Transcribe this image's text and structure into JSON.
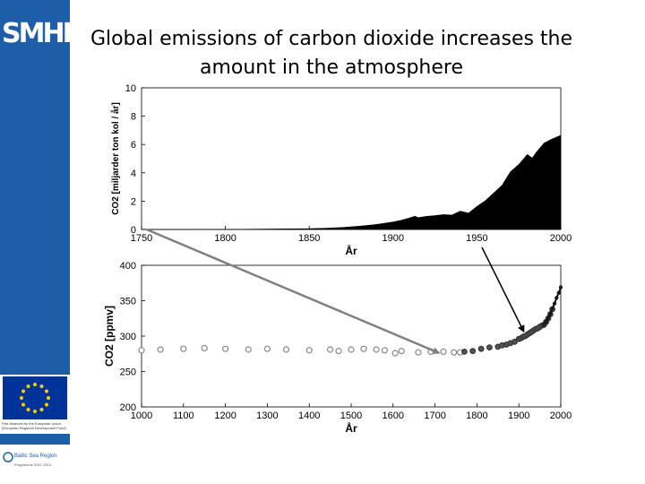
{
  "title": {
    "line1": "Global emissions of carbon dioxide increases the",
    "line2": "amount in the atmosphere"
  },
  "logo": {
    "text": "SMHI"
  },
  "footer": {
    "eu_caption": "Part-financed by the European Union (European Regional Development Fund)",
    "bsr_name": "Baltic Sea Region",
    "bsr_sub": "Programme 2007-2013"
  },
  "colors": {
    "sidebar": "#1e5ea8",
    "arrow": "#808080",
    "fill": "#000000"
  },
  "chart_data": [
    {
      "type": "area",
      "ylabel": "CO2 [miljarder ton kol / år]",
      "xlabel": "År",
      "xlim": [
        1750,
        2000
      ],
      "ylim": [
        0,
        10
      ],
      "xticks": [
        1750,
        1800,
        1850,
        1900,
        1950,
        2000
      ],
      "yticks": [
        0,
        2,
        4,
        6,
        8,
        10
      ],
      "x": [
        1750,
        1800,
        1850,
        1860,
        1870,
        1880,
        1890,
        1900,
        1905,
        1910,
        1913,
        1915,
        1920,
        1925,
        1930,
        1935,
        1940,
        1945,
        1950,
        1955,
        1960,
        1965,
        1970,
        1975,
        1980,
        1983,
        1985,
        1990,
        1995,
        2000
      ],
      "values": [
        0.003,
        0.008,
        0.054,
        0.091,
        0.147,
        0.236,
        0.356,
        0.534,
        0.66,
        0.82,
        0.94,
        0.84,
        0.93,
        0.98,
        1.05,
        1.02,
        1.3,
        1.16,
        1.63,
        2.04,
        2.58,
        3.13,
        4.08,
        4.6,
        5.3,
        5.05,
        5.4,
        6.1,
        6.4,
        6.65
      ]
    },
    {
      "type": "scatter",
      "ylabel": "CO2 [ppmv]",
      "xlabel": "År",
      "xlim": [
        1000,
        2000
      ],
      "ylim": [
        200,
        400
      ],
      "xticks": [
        1000,
        1100,
        1200,
        1300,
        1400,
        1500,
        1600,
        1700,
        1800,
        1900,
        2000
      ],
      "yticks": [
        200,
        250,
        300,
        350,
        400
      ],
      "series": [
        {
          "x": [
            1000,
            1045,
            1100,
            1150,
            1200,
            1255,
            1300,
            1345,
            1400,
            1450,
            1470,
            1500,
            1530,
            1560,
            1580,
            1605,
            1620,
            1660,
            1690,
            1720,
            1745,
            1760
          ],
          "values": [
            280,
            281,
            282,
            283,
            282,
            281,
            282,
            281,
            280,
            281,
            279,
            281,
            282,
            281,
            280,
            276,
            279,
            277,
            278,
            278,
            277,
            277
          ]
        },
        {
          "x": [
            1770,
            1790,
            1810,
            1830,
            1850,
            1860,
            1870,
            1880,
            1890,
            1900,
            1905,
            1910,
            1915,
            1920,
            1925,
            1930,
            1935,
            1940,
            1945,
            1950,
            1955,
            1960,
            1965,
            1970,
            1975,
            1980
          ],
          "values": [
            278,
            279,
            282,
            284,
            285,
            287,
            288,
            290,
            292,
            296,
            297,
            299,
            300,
            302,
            304,
            306,
            308,
            310,
            311,
            313,
            315,
            316,
            320,
            325,
            331,
            338
          ]
        },
        {
          "x": [
            1958,
            1965,
            1970,
            1975,
            1980,
            1985,
            1990,
            1995,
            2000
          ],
          "values": [
            315,
            320,
            326,
            331,
            339,
            346,
            354,
            361,
            369
          ]
        }
      ]
    }
  ]
}
